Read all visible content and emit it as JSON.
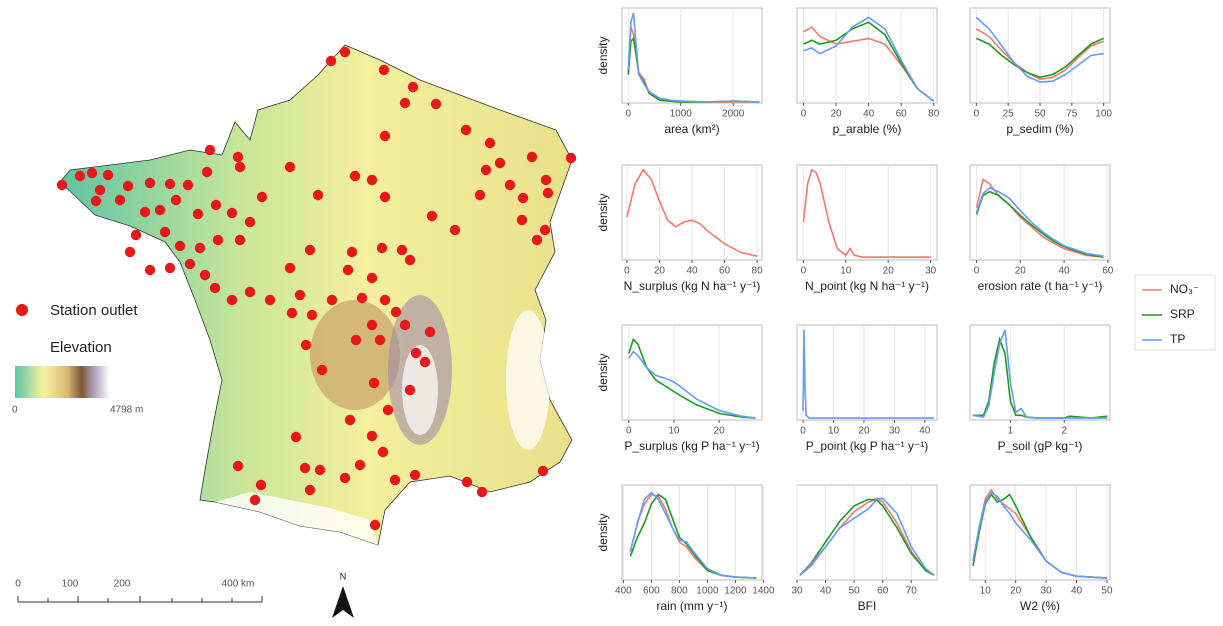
{
  "map": {
    "legend": {
      "station": "Station outlet",
      "elevation": "Elevation",
      "elev_min": "0",
      "elev_max": "4798 m"
    },
    "scale": [
      "0",
      "100",
      "200",
      "400 km"
    ],
    "north": "N"
  },
  "chart_data": [
    {
      "type": "line",
      "xlabel": "area (km²)",
      "ylabel": "density",
      "x": [
        0,
        50,
        100,
        150,
        200,
        300,
        400,
        600,
        800,
        1000,
        1500,
        2000,
        2500
      ],
      "xlim": [
        -120,
        2550
      ],
      "ylim": [
        0,
        1
      ],
      "xticks": [
        0,
        1000,
        2000
      ],
      "grid": true,
      "series": [
        {
          "name": "NO₃⁻",
          "color": "#f8766d",
          "values": [
            0.3,
            0.8,
            0.72,
            0.5,
            0.32,
            0.25,
            0.1,
            0.03,
            0.02,
            0.01,
            0.01,
            0.01,
            0.01
          ]
        },
        {
          "name": "SRP",
          "color": "#1a9e1a",
          "values": [
            0.3,
            0.65,
            0.68,
            0.5,
            0.3,
            0.22,
            0.1,
            0.03,
            0.02,
            0.01,
            0.01,
            0.02,
            0.01
          ]
        },
        {
          "name": "TP",
          "color": "#619cff",
          "values": [
            0.35,
            0.85,
            0.95,
            0.6,
            0.3,
            0.2,
            0.12,
            0.05,
            0.03,
            0.02,
            0.01,
            0.02,
            0.01
          ]
        }
      ]
    },
    {
      "type": "line",
      "xlabel": "p_arable (%)",
      "x": [
        0,
        5,
        10,
        20,
        30,
        40,
        50,
        60,
        70,
        80
      ],
      "xlim": [
        -4,
        82
      ],
      "ylim": [
        0,
        1
      ],
      "xticks": [
        0,
        20,
        40,
        60,
        80
      ],
      "grid": true,
      "series": [
        {
          "name": "NO₃⁻",
          "color": "#f8766d",
          "values": [
            0.75,
            0.8,
            0.7,
            0.62,
            0.65,
            0.68,
            0.62,
            0.4,
            0.15,
            0.02
          ]
        },
        {
          "name": "SRP",
          "color": "#1a9e1a",
          "values": [
            0.62,
            0.66,
            0.62,
            0.66,
            0.78,
            0.85,
            0.72,
            0.42,
            0.15,
            0.02
          ]
        },
        {
          "name": "TP",
          "color": "#619cff",
          "values": [
            0.55,
            0.58,
            0.52,
            0.6,
            0.8,
            0.9,
            0.78,
            0.45,
            0.15,
            0.02
          ]
        }
      ]
    },
    {
      "type": "line",
      "xlabel": "p_sedim (%)",
      "x": [
        0,
        10,
        20,
        30,
        40,
        50,
        60,
        70,
        80,
        90,
        100
      ],
      "xlim": [
        -5,
        105
      ],
      "ylim": [
        0,
        1
      ],
      "xticks": [
        0,
        25,
        50,
        75,
        100
      ],
      "grid": true,
      "series": [
        {
          "name": "NO₃⁻",
          "color": "#f8766d",
          "values": [
            0.78,
            0.7,
            0.55,
            0.42,
            0.32,
            0.25,
            0.27,
            0.35,
            0.48,
            0.6,
            0.65
          ]
        },
        {
          "name": "SRP",
          "color": "#1a9e1a",
          "values": [
            0.68,
            0.62,
            0.5,
            0.4,
            0.32,
            0.27,
            0.3,
            0.38,
            0.5,
            0.62,
            0.68
          ]
        },
        {
          "name": "TP",
          "color": "#619cff",
          "values": [
            0.9,
            0.78,
            0.6,
            0.42,
            0.28,
            0.22,
            0.23,
            0.3,
            0.4,
            0.5,
            0.52
          ]
        }
      ]
    },
    {
      "type": "line",
      "xlabel": "N_surplus (kg N ha⁻¹ y⁻¹)",
      "ylabel": "density",
      "x": [
        0,
        5,
        10,
        15,
        20,
        25,
        30,
        35,
        40,
        45,
        50,
        60,
        70,
        80
      ],
      "xlim": [
        -3,
        83
      ],
      "ylim": [
        0,
        1
      ],
      "xticks": [
        0,
        20,
        40,
        60,
        80
      ],
      "grid": true,
      "series": [
        {
          "name": "NO₃⁻",
          "color": "#f8766d",
          "values": [
            0.45,
            0.8,
            0.95,
            0.85,
            0.62,
            0.42,
            0.35,
            0.4,
            0.42,
            0.38,
            0.3,
            0.17,
            0.08,
            0.04
          ]
        }
      ]
    },
    {
      "type": "line",
      "xlabel": "N_point (kg N ha⁻¹ y⁻¹)",
      "x": [
        0,
        1,
        2,
        3,
        4,
        6,
        8,
        10,
        11,
        12,
        14,
        20,
        30
      ],
      "xlim": [
        -1.5,
        31.5
      ],
      "ylim": [
        0,
        1
      ],
      "xticks": [
        0,
        10,
        20,
        30
      ],
      "grid": true,
      "series": [
        {
          "name": "NO₃⁻",
          "color": "#f8766d",
          "values": [
            0.4,
            0.8,
            0.95,
            0.92,
            0.8,
            0.4,
            0.12,
            0.05,
            0.12,
            0.05,
            0.03,
            0.03,
            0.03
          ]
        }
      ]
    },
    {
      "type": "line",
      "xlabel": "erosion rate (t ha⁻¹ y⁻¹)",
      "x": [
        0,
        3,
        6,
        10,
        15,
        20,
        25,
        30,
        35,
        40,
        50,
        58
      ],
      "xlim": [
        -3,
        61
      ],
      "ylim": [
        0,
        1
      ],
      "xticks": [
        0,
        20,
        40,
        60
      ],
      "grid": true,
      "series": [
        {
          "name": "NO₃⁻",
          "color": "#f8766d",
          "values": [
            0.55,
            0.85,
            0.8,
            0.68,
            0.58,
            0.45,
            0.35,
            0.25,
            0.18,
            0.12,
            0.05,
            0.03
          ]
        },
        {
          "name": "SRP",
          "color": "#1a9e1a",
          "values": [
            0.48,
            0.68,
            0.72,
            0.68,
            0.58,
            0.47,
            0.37,
            0.28,
            0.2,
            0.14,
            0.06,
            0.03
          ]
        },
        {
          "name": "TP",
          "color": "#619cff",
          "values": [
            0.5,
            0.7,
            0.76,
            0.72,
            0.65,
            0.52,
            0.4,
            0.3,
            0.22,
            0.15,
            0.07,
            0.04
          ]
        }
      ]
    },
    {
      "type": "line",
      "xlabel": "P_surplus (kg P ha⁻¹ y⁻¹)",
      "ylabel": "density",
      "x": [
        0,
        1,
        2,
        4,
        6,
        8,
        10,
        12,
        15,
        20,
        25,
        28
      ],
      "xlim": [
        -1.5,
        29.5
      ],
      "ylim": [
        0,
        1
      ],
      "xticks": [
        0,
        10,
        20
      ],
      "grid": true,
      "series": [
        {
          "name": "SRP",
          "color": "#1a9e1a",
          "values": [
            0.7,
            0.85,
            0.8,
            0.55,
            0.42,
            0.36,
            0.3,
            0.24,
            0.16,
            0.07,
            0.03,
            0.02
          ]
        },
        {
          "name": "TP",
          "color": "#619cff",
          "values": [
            0.65,
            0.72,
            0.68,
            0.55,
            0.47,
            0.44,
            0.4,
            0.33,
            0.22,
            0.1,
            0.04,
            0.02
          ]
        }
      ]
    },
    {
      "type": "line",
      "xlabel": "P_point (kg P ha⁻¹ y⁻¹)",
      "x": [
        0,
        0.3,
        0.6,
        1,
        2,
        5,
        10,
        20,
        30,
        43
      ],
      "xlim": [
        -2,
        44
      ],
      "ylim": [
        0,
        1
      ],
      "xticks": [
        0,
        10,
        20,
        30,
        40
      ],
      "grid": true,
      "series": [
        {
          "name": "TP",
          "color": "#619cff",
          "values": [
            0.1,
            0.95,
            0.4,
            0.05,
            0.02,
            0.02,
            0.02,
            0.02,
            0.02,
            0.02
          ]
        }
      ]
    },
    {
      "type": "line",
      "xlabel": "P_soil (gP kg⁻¹)",
      "x": [
        0.3,
        0.5,
        0.6,
        0.7,
        0.8,
        0.9,
        1.0,
        1.1,
        1.2,
        1.3,
        1.5,
        2.0,
        2.1,
        2.5,
        2.8
      ],
      "xlim": [
        0.25,
        2.85
      ],
      "ylim": [
        0,
        1
      ],
      "xticks": [
        1,
        2
      ],
      "grid": true,
      "series": [
        {
          "name": "SRP",
          "color": "#1a9e1a",
          "values": [
            0.05,
            0.05,
            0.2,
            0.6,
            0.85,
            0.7,
            0.2,
            0.05,
            0.05,
            0.03,
            0.02,
            0.02,
            0.04,
            0.02,
            0.04
          ]
        },
        {
          "name": "TP",
          "color": "#619cff",
          "values": [
            0.05,
            0.03,
            0.15,
            0.5,
            0.8,
            0.95,
            0.4,
            0.08,
            0.12,
            0.03,
            0.02,
            0.02,
            0.02,
            0.02,
            0.02
          ]
        }
      ]
    },
    {
      "type": "line",
      "xlabel": "rain (mm y⁻¹)",
      "ylabel": "density",
      "x": [
        450,
        500,
        550,
        600,
        650,
        700,
        750,
        800,
        850,
        900,
        1000,
        1100,
        1200,
        1350
      ],
      "xlim": [
        390,
        1390
      ],
      "ylim": [
        0,
        1
      ],
      "xticks": [
        400,
        600,
        800,
        1000,
        1200,
        1400
      ],
      "grid": true,
      "series": [
        {
          "name": "NO₃⁻",
          "color": "#f8766d",
          "values": [
            0.3,
            0.6,
            0.8,
            0.9,
            0.88,
            0.75,
            0.55,
            0.4,
            0.35,
            0.25,
            0.1,
            0.05,
            0.03,
            0.02
          ]
        },
        {
          "name": "SRP",
          "color": "#1a9e1a",
          "values": [
            0.25,
            0.45,
            0.6,
            0.8,
            0.9,
            0.85,
            0.65,
            0.45,
            0.38,
            0.28,
            0.1,
            0.05,
            0.03,
            0.02
          ]
        },
        {
          "name": "TP",
          "color": "#619cff",
          "values": [
            0.3,
            0.6,
            0.85,
            0.92,
            0.85,
            0.7,
            0.55,
            0.42,
            0.4,
            0.3,
            0.12,
            0.05,
            0.03,
            0.02
          ]
        }
      ]
    },
    {
      "type": "line",
      "xlabel": "BFI",
      "x": [
        31,
        35,
        40,
        45,
        50,
        55,
        58,
        60,
        65,
        70,
        75,
        78
      ],
      "xlim": [
        30,
        79
      ],
      "ylim": [
        0,
        1
      ],
      "xticks": [
        30,
        40,
        50,
        60,
        70
      ],
      "grid": true,
      "series": [
        {
          "name": "NO₃⁻",
          "color": "#f8766d",
          "values": [
            0.05,
            0.15,
            0.35,
            0.55,
            0.72,
            0.82,
            0.86,
            0.82,
            0.6,
            0.3,
            0.1,
            0.05
          ]
        },
        {
          "name": "SRP",
          "color": "#1a9e1a",
          "values": [
            0.05,
            0.18,
            0.4,
            0.62,
            0.78,
            0.85,
            0.84,
            0.78,
            0.55,
            0.28,
            0.1,
            0.05
          ]
        },
        {
          "name": "TP",
          "color": "#619cff",
          "values": [
            0.05,
            0.17,
            0.35,
            0.55,
            0.65,
            0.75,
            0.85,
            0.86,
            0.7,
            0.35,
            0.12,
            0.05
          ]
        }
      ]
    },
    {
      "type": "line",
      "xlabel": "W2 (%)",
      "x": [
        6,
        8,
        10,
        12,
        14,
        16,
        18,
        20,
        25,
        30,
        35,
        40,
        50
      ],
      "xlim": [
        5,
        51
      ],
      "ylim": [
        0,
        1
      ],
      "xticks": [
        10,
        20,
        30,
        40,
        50
      ],
      "grid": true,
      "series": [
        {
          "name": "NO₃⁻",
          "color": "#f8766d",
          "values": [
            0.2,
            0.55,
            0.85,
            0.95,
            0.85,
            0.8,
            0.75,
            0.7,
            0.45,
            0.2,
            0.08,
            0.04,
            0.02
          ]
        },
        {
          "name": "SRP",
          "color": "#1a9e1a",
          "values": [
            0.15,
            0.5,
            0.8,
            0.9,
            0.82,
            0.85,
            0.9,
            0.78,
            0.45,
            0.2,
            0.08,
            0.04,
            0.02
          ]
        },
        {
          "name": "TP",
          "color": "#619cff",
          "values": [
            0.2,
            0.55,
            0.82,
            0.92,
            0.88,
            0.78,
            0.7,
            0.6,
            0.42,
            0.2,
            0.08,
            0.04,
            0.02
          ]
        }
      ]
    }
  ]
}
